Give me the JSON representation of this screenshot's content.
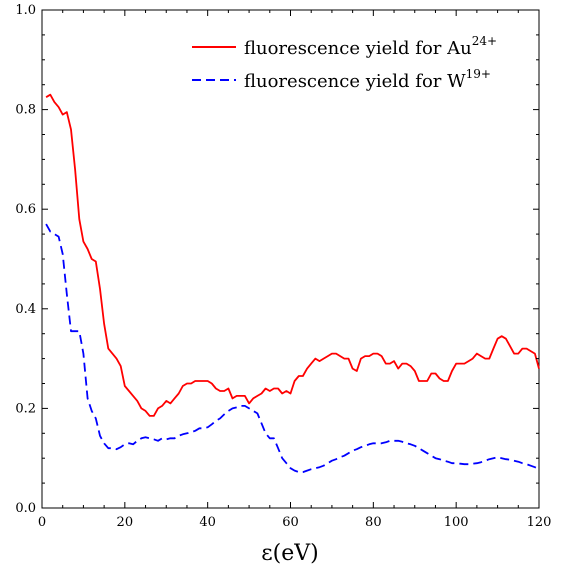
{
  "chart_data": {
    "type": "line",
    "title": "",
    "xlabel": "ε(eV)",
    "ylabel": "",
    "xlim": [
      0,
      120
    ],
    "ylim": [
      0.0,
      1.0
    ],
    "xticks": [
      0,
      20,
      40,
      60,
      80,
      100,
      120
    ],
    "xtick_labels": [
      "0",
      "20",
      "40",
      "60",
      "80",
      "100",
      "120"
    ],
    "yticks": [
      0.0,
      0.2,
      0.4,
      0.6,
      0.8,
      1.0
    ],
    "ytick_labels": [
      "0.0",
      "0.2",
      "0.4",
      "0.6",
      "0.8",
      "1.0"
    ],
    "grid": false,
    "legend_position": "top-right",
    "series": [
      {
        "name": "fluorescence yield for Au",
        "name_sup": "24+",
        "color": "#ff0000",
        "dash": "solid",
        "x": [
          1,
          2,
          3,
          4,
          5,
          6,
          7,
          8,
          9,
          10,
          11,
          12,
          13,
          14,
          15,
          16,
          17,
          18,
          19,
          20,
          21,
          22,
          23,
          24,
          25,
          26,
          27,
          28,
          29,
          30,
          31,
          32,
          33,
          34,
          35,
          36,
          37,
          38,
          39,
          40,
          41,
          42,
          43,
          44,
          45,
          46,
          47,
          48,
          49,
          50,
          51,
          52,
          53,
          54,
          55,
          56,
          57,
          58,
          59,
          60,
          61,
          62,
          63,
          64,
          65,
          66,
          67,
          68,
          69,
          70,
          71,
          72,
          73,
          74,
          75,
          76,
          77,
          78,
          79,
          80,
          81,
          82,
          83,
          84,
          85,
          86,
          87,
          88,
          89,
          90,
          91,
          92,
          93,
          94,
          95,
          96,
          97,
          98,
          99,
          100,
          101,
          102,
          103,
          104,
          105,
          106,
          107,
          108,
          109,
          110,
          111,
          112,
          113,
          114,
          115,
          116,
          117,
          118,
          119,
          120
        ],
        "y": [
          0.825,
          0.83,
          0.815,
          0.805,
          0.79,
          0.795,
          0.76,
          0.68,
          0.58,
          0.535,
          0.52,
          0.5,
          0.495,
          0.44,
          0.37,
          0.32,
          0.31,
          0.3,
          0.285,
          0.245,
          0.235,
          0.225,
          0.215,
          0.2,
          0.195,
          0.185,
          0.185,
          0.2,
          0.205,
          0.215,
          0.21,
          0.22,
          0.23,
          0.245,
          0.25,
          0.25,
          0.255,
          0.255,
          0.255,
          0.255,
          0.25,
          0.24,
          0.235,
          0.235,
          0.24,
          0.22,
          0.225,
          0.225,
          0.225,
          0.21,
          0.22,
          0.225,
          0.23,
          0.24,
          0.235,
          0.24,
          0.24,
          0.23,
          0.235,
          0.23,
          0.255,
          0.265,
          0.265,
          0.28,
          0.29,
          0.3,
          0.295,
          0.3,
          0.305,
          0.31,
          0.31,
          0.305,
          0.3,
          0.3,
          0.28,
          0.275,
          0.3,
          0.305,
          0.305,
          0.31,
          0.31,
          0.305,
          0.29,
          0.29,
          0.295,
          0.28,
          0.29,
          0.29,
          0.285,
          0.275,
          0.255,
          0.255,
          0.255,
          0.27,
          0.27,
          0.26,
          0.255,
          0.255,
          0.275,
          0.29,
          0.29,
          0.29,
          0.295,
          0.3,
          0.31,
          0.305,
          0.3,
          0.3,
          0.32,
          0.34,
          0.345,
          0.34,
          0.325,
          0.31,
          0.31,
          0.32,
          0.32,
          0.315,
          0.31,
          0.28
        ]
      },
      {
        "name": "fluorescence yield for W",
        "name_sup": "19+",
        "color": "#0000ff",
        "dash": "dashed",
        "x": [
          1,
          2,
          3,
          4,
          5,
          6,
          7,
          8,
          9,
          10,
          11,
          12,
          13,
          14,
          15,
          16,
          17,
          18,
          19,
          20,
          21,
          22,
          23,
          24,
          25,
          26,
          27,
          28,
          29,
          30,
          31,
          32,
          33,
          34,
          35,
          36,
          37,
          38,
          39,
          40,
          41,
          42,
          43,
          44,
          45,
          46,
          47,
          48,
          49,
          50,
          51,
          52,
          53,
          54,
          55,
          56,
          57,
          58,
          59,
          60,
          61,
          62,
          63,
          64,
          65,
          66,
          67,
          68,
          69,
          70,
          71,
          72,
          73,
          74,
          75,
          76,
          77,
          78,
          79,
          80,
          81,
          82,
          83,
          84,
          85,
          86,
          87,
          88,
          89,
          90,
          91,
          92,
          93,
          94,
          95,
          96,
          97,
          98,
          99,
          100,
          101,
          102,
          103,
          104,
          105,
          106,
          107,
          108,
          109,
          110,
          111,
          112,
          113,
          114,
          115,
          116,
          117,
          118,
          119,
          120
        ],
        "y": [
          0.57,
          0.555,
          0.55,
          0.545,
          0.51,
          0.43,
          0.355,
          0.355,
          0.355,
          0.31,
          0.22,
          0.195,
          0.18,
          0.145,
          0.13,
          0.12,
          0.12,
          0.118,
          0.122,
          0.128,
          0.13,
          0.128,
          0.135,
          0.14,
          0.142,
          0.14,
          0.138,
          0.135,
          0.14,
          0.138,
          0.14,
          0.14,
          0.145,
          0.148,
          0.15,
          0.152,
          0.155,
          0.16,
          0.16,
          0.162,
          0.168,
          0.175,
          0.18,
          0.188,
          0.195,
          0.2,
          0.202,
          0.205,
          0.205,
          0.2,
          0.195,
          0.19,
          0.17,
          0.15,
          0.14,
          0.14,
          0.12,
          0.1,
          0.09,
          0.08,
          0.075,
          0.072,
          0.072,
          0.075,
          0.078,
          0.08,
          0.082,
          0.085,
          0.09,
          0.095,
          0.098,
          0.102,
          0.105,
          0.11,
          0.115,
          0.118,
          0.122,
          0.125,
          0.128,
          0.13,
          0.13,
          0.13,
          0.132,
          0.135,
          0.135,
          0.135,
          0.133,
          0.13,
          0.128,
          0.125,
          0.12,
          0.115,
          0.11,
          0.105,
          0.1,
          0.098,
          0.095,
          0.093,
          0.09,
          0.09,
          0.089,
          0.088,
          0.088,
          0.089,
          0.09,
          0.092,
          0.095,
          0.098,
          0.1,
          0.102,
          0.1,
          0.098,
          0.097,
          0.095,
          0.093,
          0.09,
          0.088,
          0.085,
          0.082,
          0.078
        ]
      }
    ]
  }
}
